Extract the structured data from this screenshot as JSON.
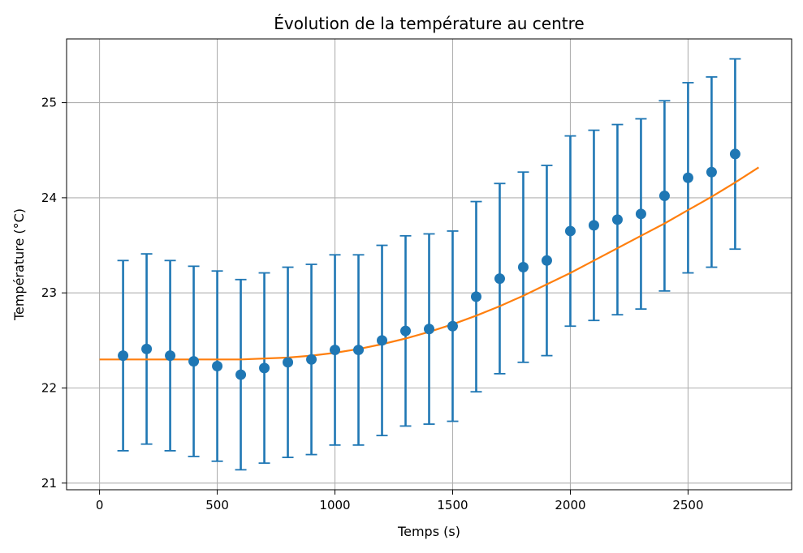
{
  "chart_data": {
    "type": "scatter",
    "title": "Évolution de la température au centre",
    "xlabel": "Temps (s)",
    "ylabel": "Température (°C)",
    "xlim": [
      -140,
      2940
    ],
    "ylim": [
      20.93,
      25.67
    ],
    "xticks": [
      0,
      500,
      1000,
      1500,
      2000,
      2500
    ],
    "xtick_labels": [
      "0",
      "500",
      "1000",
      "1500",
      "2000",
      "2500"
    ],
    "yticks": [
      21,
      22,
      23,
      24,
      25
    ],
    "ytick_labels": [
      "21",
      "22",
      "23",
      "24",
      "25"
    ],
    "grid": true,
    "colors": {
      "measure": "#1f77b4",
      "model": "#ff7f0e",
      "grid": "#b0b0b0"
    },
    "measurements": {
      "x": [
        100,
        200,
        300,
        400,
        500,
        600,
        700,
        800,
        900,
        1000,
        1100,
        1200,
        1300,
        1400,
        1500,
        1600,
        1700,
        1800,
        1900,
        2000,
        2100,
        2200,
        2300,
        2400,
        2500,
        2600,
        2700
      ],
      "y": [
        22.34,
        22.41,
        22.34,
        22.28,
        22.23,
        22.14,
        22.21,
        22.27,
        22.3,
        22.4,
        22.4,
        22.5,
        22.6,
        22.62,
        22.65,
        22.96,
        23.15,
        23.27,
        23.34,
        23.65,
        23.71,
        23.77,
        23.83,
        24.02,
        24.21,
        24.27,
        24.46
      ],
      "yerr": 1.0
    },
    "model_curve": {
      "x": [
        0,
        100,
        200,
        300,
        400,
        500,
        600,
        700,
        800,
        900,
        1000,
        1100,
        1200,
        1300,
        1400,
        1500,
        1600,
        1700,
        1800,
        1900,
        2000,
        2100,
        2200,
        2300,
        2400,
        2500,
        2600,
        2700,
        2800
      ],
      "y": [
        22.3,
        22.3,
        22.3,
        22.3,
        22.3,
        22.3,
        22.3,
        22.31,
        22.32,
        22.34,
        22.37,
        22.41,
        22.46,
        22.52,
        22.59,
        22.67,
        22.76,
        22.86,
        22.97,
        23.09,
        23.21,
        23.34,
        23.47,
        23.6,
        23.73,
        23.87,
        24.01,
        24.16,
        24.32
      ]
    }
  }
}
